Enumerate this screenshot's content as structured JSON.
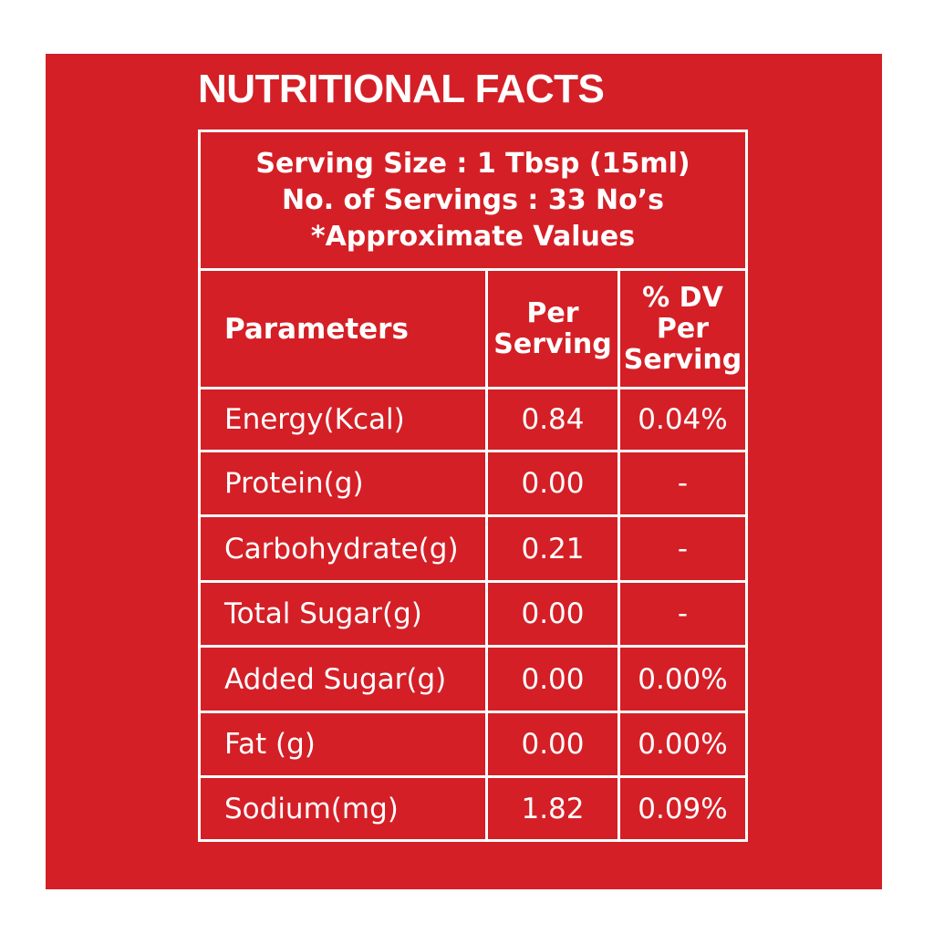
{
  "title": "NUTRITIONAL FACTS",
  "serving": {
    "line1": "Serving Size : 1 Tbsp (15ml)",
    "line2": "No. of Servings : 33 No’s",
    "line3": "*Approximate Values"
  },
  "headers": {
    "parameters": "Parameters",
    "per_serving_1": "Per",
    "per_serving_2": "Serving",
    "dv_1": "% DV",
    "dv_2": "Per",
    "dv_3": "Serving"
  },
  "rows": [
    {
      "parameter": "Energy(Kcal)",
      "per_serving": "0.84",
      "dv": "0.04%"
    },
    {
      "parameter": "Protein(g)",
      "per_serving": "0.00",
      "dv": "-"
    },
    {
      "parameter": "Carbohydrate(g)",
      "per_serving": "0.21",
      "dv": "-"
    },
    {
      "parameter": "Total Sugar(g)",
      "per_serving": "0.00",
      "dv": "-"
    },
    {
      "parameter": "Added Sugar(g)",
      "per_serving": "0.00",
      "dv": "0.00%"
    },
    {
      "parameter": "Fat (g)",
      "per_serving": "0.00",
      "dv": "0.00%"
    },
    {
      "parameter": "Sodium(mg)",
      "per_serving": "1.82",
      "dv": "0.09%"
    }
  ],
  "colors": {
    "panel": "#d41f26",
    "text_and_rules": "#ffffff"
  }
}
